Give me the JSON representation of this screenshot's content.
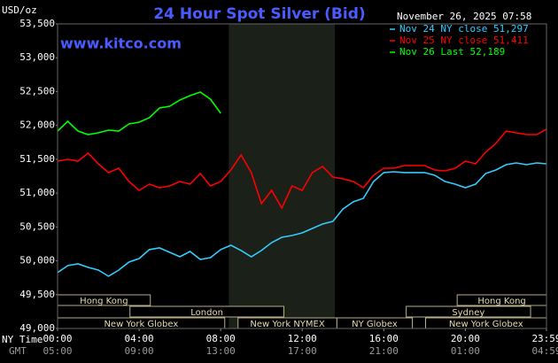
{
  "chart_data": {
    "type": "line",
    "title": "24 Hour Spot Silver (Bid)",
    "timestamp": "November 26, 2025 07:58",
    "website": "www.kitco.com",
    "y_axis_label": "USD/oz",
    "x_row_labels": [
      "NY Time",
      "GMT"
    ],
    "x": [
      0,
      0.5,
      1,
      1.5,
      2,
      2.5,
      3,
      3.5,
      4,
      4.5,
      5,
      5.5,
      6,
      6.5,
      7,
      7.5,
      8,
      8.5,
      9,
      9.5,
      10,
      10.5,
      11,
      11.5,
      12,
      12.5,
      13,
      13.5,
      14,
      14.5,
      15,
      15.5,
      16,
      16.5,
      17,
      17.5,
      18,
      18.5,
      19,
      19.5,
      20,
      20.5,
      21,
      21.5,
      22,
      22.5,
      23,
      23.5,
      23.98
    ],
    "xlim": [
      0,
      23.98
    ],
    "xticks": [
      {
        "value": 0,
        "label": "00:00"
      },
      {
        "value": 4,
        "label": "04:00"
      },
      {
        "value": 8,
        "label": "08:00"
      },
      {
        "value": 12,
        "label": "12:00"
      },
      {
        "value": 16,
        "label": "16:00"
      },
      {
        "value": 20,
        "label": "20:00"
      },
      {
        "value": 23.98,
        "label": "23:59"
      }
    ],
    "gmt_ticks": [
      {
        "value": 0,
        "label": "05:00"
      },
      {
        "value": 4,
        "label": "09:00"
      },
      {
        "value": 8,
        "label": "13:00"
      },
      {
        "value": 12,
        "label": "17:00"
      },
      {
        "value": 16,
        "label": "21:00"
      },
      {
        "value": 20,
        "label": "01:00"
      },
      {
        "value": 23.98,
        "label": "04:59"
      }
    ],
    "ylim": [
      49000,
      53500
    ],
    "yticks": [
      {
        "value": 49000,
        "label": "49,000"
      },
      {
        "value": 49500,
        "label": "49,500"
      },
      {
        "value": 50000,
        "label": "50,000"
      },
      {
        "value": 50500,
        "label": "50,500"
      },
      {
        "value": 51000,
        "label": "51,000"
      },
      {
        "value": 51500,
        "label": "51,500"
      },
      {
        "value": 52000,
        "label": "52,000"
      },
      {
        "value": 52500,
        "label": "52,500"
      },
      {
        "value": 53000,
        "label": "53,000"
      },
      {
        "value": 53500,
        "label": "53,500"
      }
    ],
    "grid": false,
    "legend": "top-right",
    "highlight": {
      "start": 8.4,
      "end": 13.6,
      "color": "#1b2018"
    },
    "sessions": [
      {
        "name": "Hong Kong",
        "start": 0,
        "end": 4.55,
        "row": 0
      },
      {
        "name": "Hong Kong",
        "start": 19.6,
        "end": 23.98,
        "row": 0
      },
      {
        "name": "London",
        "start": 3.55,
        "end": 11.1,
        "row": 1
      },
      {
        "name": "Sydney",
        "start": 17.1,
        "end": 23.2,
        "row": 1
      },
      {
        "name": "New York Globex",
        "start": 0,
        "end": 8.2,
        "row": 2
      },
      {
        "name": "New York NYMEX",
        "start": 8.85,
        "end": 13.7,
        "row": 2
      },
      {
        "name": "NY Globex",
        "start": 13.7,
        "end": 17.4,
        "row": 2
      },
      {
        "name": "New York Globex",
        "start": 18.05,
        "end": 23.98,
        "row": 2
      }
    ],
    "series": [
      {
        "name": "Nov 24 NY close 51,297",
        "color": "#33ccff",
        "values": [
          49825,
          49929,
          49955,
          49903,
          49864,
          49772,
          49864,
          49981,
          50034,
          50165,
          50191,
          50125,
          50060,
          50138,
          50021,
          50047,
          50165,
          50230,
          50152,
          50060,
          50152,
          50269,
          50348,
          50374,
          50413,
          50478,
          50544,
          50583,
          50766,
          50871,
          50923,
          51172,
          51303,
          51316,
          51303,
          51303,
          51303,
          51263,
          51172,
          51132,
          51080,
          51132,
          51290,
          51342,
          51420,
          51446,
          51420,
          51446,
          51433
        ]
      },
      {
        "name": "Nov 25 NY close 51,411",
        "color": "#ff0000",
        "values": [
          51473,
          51499,
          51473,
          51590,
          51433,
          51303,
          51368,
          51172,
          51041,
          51132,
          51080,
          51106,
          51172,
          51132,
          51290,
          51106,
          51172,
          51342,
          51564,
          51303,
          50845,
          51041,
          50779,
          51106,
          51041,
          51303,
          51394,
          51237,
          51211,
          51172,
          51080,
          51263,
          51368,
          51368,
          51407,
          51407,
          51407,
          51342,
          51329,
          51368,
          51473,
          51433,
          51604,
          51734,
          51917,
          51891,
          51865,
          51865,
          51944
        ]
      },
      {
        "name": "Nov 26 Last 52,189",
        "color": "#00ff00",
        "values": [
          51917,
          52061,
          51917,
          51865,
          51891,
          51930,
          51917,
          52022,
          52048,
          52113,
          52257,
          52283,
          52375,
          52440,
          52493,
          52388,
          52179,
          null,
          null,
          null,
          null,
          null,
          null,
          null,
          null,
          null,
          null,
          null,
          null,
          null,
          null,
          null,
          null,
          null,
          null,
          null,
          null,
          null,
          null,
          null,
          null,
          null,
          null,
          null,
          null,
          null,
          null,
          null,
          null
        ]
      }
    ]
  }
}
